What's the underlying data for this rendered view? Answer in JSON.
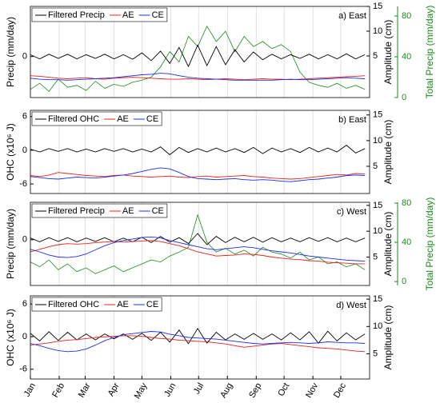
{
  "chart_data": [
    {
      "type": "line",
      "annotation": "a) East",
      "ylabel": "Precip (mm/day)",
      "y2label": "Amplitude (cm)",
      "y3label": "Total Precip (mm/day)",
      "y3color": "#1a8c1a",
      "legend": "upper left",
      "grid": true,
      "x": [
        1,
        11,
        21,
        31,
        41,
        51,
        61,
        71,
        81,
        91,
        101,
        111,
        121,
        131,
        141,
        151,
        161,
        171,
        181,
        191,
        201,
        211,
        221,
        231,
        241,
        251,
        261,
        271,
        281,
        291,
        301,
        311,
        321,
        331,
        341,
        351,
        361
      ],
      "xlim": [
        1,
        366
      ],
      "ylim": [
        -9,
        11
      ],
      "yticks": [
        0
      ],
      "y2lim": [
        -3.4,
        15
      ],
      "y2ticks": [
        5,
        10,
        15
      ],
      "y3lim": [
        0,
        89.4
      ],
      "y3ticks": [
        0,
        40,
        80
      ],
      "series": [
        {
          "name": "Filtered Precip",
          "color": "#000000",
          "axis": "y",
          "values": [
            0.4,
            -0.5,
            0.5,
            -0.4,
            0.5,
            -0.5,
            0.4,
            -0.4,
            0.5,
            -0.5,
            0.4,
            -0.6,
            0.8,
            -0.9,
            1.2,
            -1.5,
            2,
            -2.2,
            2.5,
            -2,
            2.2,
            -1.8,
            1.5,
            -1.2,
            1.0,
            -0.7,
            0.5,
            -0.5,
            0.4,
            -0.4,
            0.5,
            -0.5,
            0.4,
            -0.5,
            0.6,
            -0.5,
            0.4
          ]
        },
        {
          "name": "AE",
          "color": "#e8201a",
          "axis": "y2",
          "values": [
            1.0,
            0.9,
            0.7,
            0.5,
            0.4,
            0.5,
            0.6,
            0.4,
            0.3,
            0.5,
            0.6,
            0.7,
            0.6,
            0.5,
            0.4,
            0.3,
            0.3,
            0.4,
            0.3,
            0.2,
            0.3,
            0.4,
            0.3,
            0.2,
            0.3,
            0.4,
            0.3,
            0.3,
            0.2,
            0.3,
            0.4,
            0.5,
            0.6,
            0.7,
            0.8,
            0.9,
            1.0
          ]
        },
        {
          "name": "CE",
          "color": "#1a2ee8",
          "axis": "y2",
          "values": [
            0.5,
            0.3,
            0.2,
            0.2,
            0.1,
            0.2,
            0.3,
            0.4,
            0.5,
            0.6,
            0.8,
            1.0,
            1.2,
            1.3,
            1.5,
            1.4,
            1.0,
            0.7,
            0.5,
            0.4,
            0.3,
            0.2,
            0.1,
            0.1,
            0.1,
            0.1,
            0.1,
            0.2,
            0.3,
            0.2,
            0.2,
            0.3,
            0.4,
            0.5,
            0.6,
            0.5,
            0.4
          ]
        },
        {
          "color": "#1a8c1a",
          "axis": "y3",
          "values": [
            8,
            14,
            6,
            18,
            10,
            12,
            7,
            16,
            9,
            13,
            11,
            15,
            17,
            20,
            30,
            45,
            35,
            60,
            50,
            70,
            55,
            65,
            45,
            60,
            50,
            55,
            48,
            52,
            45,
            25,
            15,
            12,
            10,
            14,
            9,
            12,
            8
          ]
        }
      ]
    },
    {
      "type": "line",
      "annotation": "b) East",
      "ylabel": "OHC (x10⁶ J)",
      "y2label": "Amplitude (cm)",
      "legend": "upper left",
      "grid": true,
      "x": [
        1,
        11,
        21,
        31,
        41,
        51,
        61,
        71,
        81,
        91,
        101,
        111,
        121,
        131,
        141,
        151,
        161,
        171,
        181,
        191,
        201,
        211,
        221,
        231,
        241,
        251,
        261,
        271,
        281,
        291,
        301,
        311,
        321,
        331,
        341,
        351,
        361
      ],
      "xlim": [
        1,
        366
      ],
      "ylim": [
        -7.7,
        7.1
      ],
      "yticks": [
        6,
        0,
        -6
      ],
      "y2lim": [
        -0.3,
        15.9
      ],
      "y2ticks": [
        5,
        10,
        15
      ],
      "series": [
        {
          "name": "Filtered OHC",
          "color": "#000000",
          "axis": "y",
          "values": [
            0.2,
            -0.3,
            0.3,
            -0.2,
            0.3,
            -0.3,
            0.2,
            -0.3,
            0.3,
            -0.2,
            0.3,
            -0.3,
            0.2,
            -0.3,
            0.6,
            -0.8,
            0.5,
            -0.4,
            0.3,
            -0.3,
            0.4,
            -0.3,
            0.3,
            -0.4,
            0.5,
            -0.6,
            0.4,
            -0.3,
            0.3,
            -0.4,
            0.5,
            -0.3,
            0.4,
            -0.3,
            0.9,
            -0.5,
            0.3
          ]
        },
        {
          "name": "AE",
          "color": "#e8201a",
          "axis": "y2",
          "values": [
            3.2,
            3.0,
            3.3,
            3.8,
            3.6,
            3.4,
            3.2,
            3.1,
            3.0,
            3.2,
            3.3,
            3.1,
            3.0,
            2.9,
            3.0,
            3.1,
            2.9,
            2.8,
            3.0,
            3.1,
            2.9,
            3.0,
            3.1,
            3.2,
            3.0,
            2.9,
            2.7,
            2.6,
            2.5,
            2.6,
            2.8,
            3.0,
            3.2,
            3.4,
            3.3,
            3.6,
            3.5
          ]
        },
        {
          "name": "CE",
          "color": "#1a2ee8",
          "axis": "y2",
          "values": [
            3.0,
            2.8,
            2.6,
            2.5,
            2.7,
            2.9,
            2.8,
            2.7,
            2.9,
            3.1,
            3.3,
            3.6,
            4.0,
            4.4,
            4.7,
            4.5,
            3.8,
            3.0,
            2.6,
            2.5,
            2.4,
            2.5,
            2.6,
            2.4,
            2.3,
            2.4,
            2.3,
            2.1,
            2.0,
            2.2,
            2.4,
            2.5,
            2.7,
            2.9,
            3.2,
            3.3,
            3.2
          ]
        }
      ]
    },
    {
      "type": "line",
      "annotation": "c) West",
      "ylabel": "Precip (mm/day)",
      "y2label": "Amplitude (cm)",
      "y3label": "Total Precip (mm/day)",
      "y3color": "#1a8c1a",
      "legend": "upper left",
      "grid": true,
      "x": [
        1,
        11,
        21,
        31,
        41,
        51,
        61,
        71,
        81,
        91,
        101,
        111,
        121,
        131,
        141,
        151,
        161,
        171,
        181,
        191,
        201,
        211,
        221,
        231,
        241,
        251,
        261,
        271,
        281,
        291,
        301,
        311,
        321,
        331,
        341,
        351,
        361
      ],
      "xlim": [
        1,
        366
      ],
      "ylim": [
        -11,
        9
      ],
      "yticks": [
        0
      ],
      "y2lim": [
        -0.5,
        15.6
      ],
      "y2ticks": [
        5,
        10,
        15
      ],
      "y3lim": [
        -4,
        80.8
      ],
      "y3ticks": [
        0,
        40,
        80
      ],
      "series": [
        {
          "name": "Filtered Precip",
          "color": "#000000",
          "axis": "y",
          "values": [
            0.4,
            -0.5,
            0.5,
            -0.4,
            0.5,
            -0.5,
            0.4,
            -0.4,
            0.5,
            -0.5,
            0.4,
            -0.5,
            0.6,
            -0.7,
            0.8,
            -0.6,
            0.5,
            -0.9,
            1.5,
            -1.2,
            0.8,
            -0.7,
            0.6,
            -0.5,
            0.6,
            -0.6,
            0.5,
            -0.5,
            0.4,
            -0.5,
            0.5,
            -0.4,
            0.5,
            -0.5,
            0.4,
            -0.5,
            0.4
          ]
        },
        {
          "name": "AE",
          "color": "#e8201a",
          "axis": "y2",
          "values": [
            6.0,
            6.5,
            7.0,
            7.4,
            7.6,
            7.5,
            7.6,
            7.8,
            7.9,
            8.0,
            7.9,
            8.0,
            8.1,
            8.2,
            8.0,
            7.6,
            7.2,
            6.6,
            6.0,
            5.6,
            5.2,
            5.3,
            5.4,
            5.6,
            5.5,
            5.3,
            5.0,
            4.8,
            4.6,
            4.5,
            4.3,
            4.2,
            4.0,
            3.9,
            3.8,
            3.7,
            3.7
          ]
        },
        {
          "name": "CE",
          "color": "#1a2ee8",
          "axis": "y2",
          "values": [
            6.5,
            6.0,
            5.4,
            5.0,
            4.9,
            5.1,
            5.6,
            6.4,
            7.2,
            7.8,
            8.2,
            8.5,
            8.8,
            8.9,
            8.7,
            8.2,
            7.8,
            7.4,
            7.0,
            6.6,
            6.4,
            6.6,
            6.8,
            7.0,
            6.8,
            6.5,
            6.2,
            6.0,
            5.8,
            5.5,
            5.2,
            5.0,
            4.8,
            4.6,
            4.4,
            4.3,
            4.2
          ]
        },
        {
          "color": "#1a8c1a",
          "axis": "y3",
          "values": [
            20,
            15,
            22,
            12,
            18,
            10,
            14,
            8,
            12,
            16,
            10,
            14,
            18,
            22,
            20,
            26,
            30,
            35,
            68,
            40,
            30,
            34,
            28,
            32,
            26,
            35,
            30,
            28,
            24,
            30,
            22,
            25,
            18,
            20,
            15,
            18,
            12
          ]
        }
      ]
    },
    {
      "type": "line",
      "annotation": "d) West",
      "ylabel": "OHC (x10⁶ J)",
      "y2label": "Amplitude (cm)",
      "legend": "upper left",
      "grid": true,
      "x": [
        1,
        11,
        21,
        31,
        41,
        51,
        61,
        71,
        81,
        91,
        101,
        111,
        121,
        131,
        141,
        151,
        161,
        171,
        181,
        191,
        201,
        211,
        221,
        231,
        241,
        251,
        261,
        271,
        281,
        291,
        301,
        311,
        321,
        331,
        341,
        351,
        361
      ],
      "xlim": [
        1,
        366
      ],
      "ylim": [
        -7.8,
        7.5
      ],
      "yticks": [
        6,
        0,
        -6
      ],
      "y2lim": [
        0.4,
        15.6
      ],
      "y2ticks": [
        5,
        10,
        15
      ],
      "xticks": [
        {
          "value": 1,
          "label": "Jan"
        },
        {
          "value": 32,
          "label": "Feb"
        },
        {
          "value": 60,
          "label": "Mar"
        },
        {
          "value": 91,
          "label": "Apr"
        },
        {
          "value": 121,
          "label": "May"
        },
        {
          "value": 152,
          "label": "Jun"
        },
        {
          "value": 182,
          "label": "Jul"
        },
        {
          "value": 213,
          "label": "Aug"
        },
        {
          "value": 244,
          "label": "Sep"
        },
        {
          "value": 274,
          "label": "Oct"
        },
        {
          "value": 305,
          "label": "Nov"
        },
        {
          "value": 335,
          "label": "Dec"
        }
      ],
      "series": [
        {
          "name": "Filtered OHC",
          "color": "#000000",
          "axis": "y",
          "values": [
            0.6,
            -0.8,
            0.9,
            -0.7,
            0.8,
            -0.6,
            0.5,
            -0.6,
            0.5,
            -0.4,
            0.5,
            -0.5,
            0.6,
            -0.7,
            0.8,
            -1.0,
            1.2,
            -1.3,
            1.5,
            -1.2,
            0.8,
            -0.6,
            0.5,
            -0.5,
            0.6,
            -0.5,
            0.5,
            -0.6,
            0.7,
            -0.6,
            0.9,
            -1.2,
            1.0,
            -0.8,
            0.7,
            -0.6,
            0.5
          ]
        },
        {
          "name": "AE",
          "color": "#e8201a",
          "axis": "y2",
          "values": [
            6.6,
            6.8,
            7.0,
            7.3,
            7.5,
            7.6,
            7.8,
            8.0,
            8.1,
            8.2,
            8.3,
            8.3,
            8.2,
            8.0,
            7.8,
            7.7,
            7.5,
            7.4,
            7.3,
            7.2,
            7.0,
            6.8,
            6.5,
            6.2,
            6.4,
            6.6,
            6.8,
            6.9,
            6.7,
            6.5,
            6.3,
            6.1,
            6.0,
            5.9,
            5.7,
            5.5,
            5.4
          ]
        },
        {
          "name": "CE",
          "color": "#1a2ee8",
          "axis": "y2",
          "values": [
            6.9,
            6.5,
            6.0,
            5.6,
            5.4,
            5.5,
            5.9,
            6.6,
            7.4,
            8.0,
            8.5,
            8.7,
            8.9,
            9.1,
            9.0,
            8.6,
            8.3,
            8.0,
            7.9,
            7.8,
            7.7,
            7.5,
            7.3,
            7.1,
            6.9,
            6.8,
            6.9,
            7.0,
            7.1,
            7.0,
            6.9,
            7.0,
            7.2,
            7.1,
            7.0,
            7.0,
            6.9
          ]
        }
      ]
    }
  ]
}
